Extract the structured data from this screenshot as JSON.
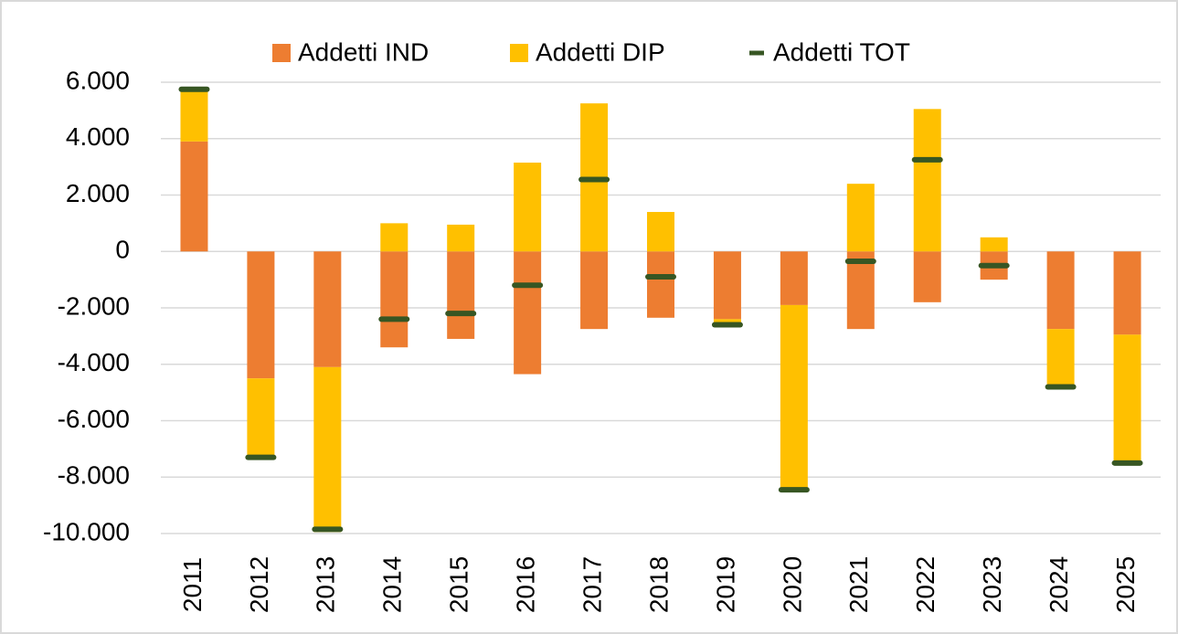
{
  "chart_data": {
    "type": "bar",
    "stacked": true,
    "categories": [
      "2011",
      "2012",
      "2013",
      "2014",
      "2015",
      "2016",
      "2017",
      "2018",
      "2019",
      "2020",
      "2021",
      "2022",
      "2023",
      "2024",
      "2025"
    ],
    "series": [
      {
        "name": "Addetti IND",
        "color": "#ed7d31",
        "values": [
          3900,
          -4500,
          -4100,
          -3400,
          -3100,
          -4350,
          -2750,
          -2350,
          -2400,
          -1900,
          -2750,
          -1800,
          -1000,
          -2750,
          -2950
        ]
      },
      {
        "name": "Addetti DIP",
        "color": "#ffc000",
        "values": [
          1850,
          -2800,
          -5850,
          1000,
          950,
          3150,
          5250,
          1400,
          -250,
          -6550,
          2400,
          5050,
          500,
          -2050,
          -4550
        ]
      },
      {
        "name": "Addetti TOT",
        "color": "#375623",
        "type": "marker",
        "values": [
          5750,
          -7300,
          -9850,
          -2400,
          -2200,
          -1200,
          2550,
          -900,
          -2600,
          -8450,
          -350,
          3250,
          -500,
          -4800,
          -7500
        ]
      }
    ],
    "ylim": [
      -10000,
      6000
    ],
    "yticks": [
      {
        "value": -10000,
        "label": "-10.000"
      },
      {
        "value": -8000,
        "label": "-8.000"
      },
      {
        "value": -6000,
        "label": "-6.000"
      },
      {
        "value": -4000,
        "label": "-4.000"
      },
      {
        "value": -2000,
        "label": "-2.000"
      },
      0,
      {
        "value": 2000,
        "label": "2.000"
      },
      {
        "value": 4000,
        "label": "4.000"
      },
      {
        "value": 6000,
        "label": "6.000"
      }
    ],
    "grid": true,
    "legend": "top"
  }
}
